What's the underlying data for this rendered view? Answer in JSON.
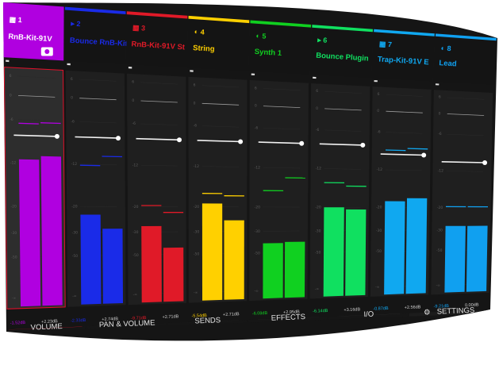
{
  "channels": [
    {
      "number": "1",
      "name": "RnB-Kit-91V",
      "type": "drum",
      "color": "#b000e0",
      "selected": true,
      "levels": [
        0.62,
        0.635
      ],
      "peaks": [
        0.77,
        0.775
      ],
      "fader": 0.72,
      "db_left": "-1.52dB",
      "db_right": "+2.23dB"
    },
    {
      "number": "2",
      "name": "Bounce RnB-Kit",
      "type": "audio",
      "color": "#1a2be8",
      "selected": false,
      "levels": [
        0.39,
        0.33
      ],
      "peaks": [
        0.6,
        0.64
      ],
      "fader": 0.72,
      "db_left": "-2.33dB",
      "db_right": "+2.74dB"
    },
    {
      "number": "3",
      "name": "RnB-Kit-91V St",
      "type": "drum",
      "color": "#e01a28",
      "selected": false,
      "levels": [
        0.34,
        0.245
      ],
      "peaks": [
        0.43,
        0.4
      ],
      "fader": 0.72,
      "db_left": "-9.71dB",
      "db_right": "+2.71dB"
    },
    {
      "number": "4",
      "name": "String",
      "type": "plugin",
      "color": "#ffd000",
      "selected": false,
      "levels": [
        0.44,
        0.365
      ],
      "peaks": [
        0.485,
        0.475
      ],
      "fader": 0.72,
      "db_left": "-5.54dB",
      "db_right": "+2.71dB"
    },
    {
      "number": "5",
      "name": "Synth 1",
      "type": "plugin",
      "color": "#10d020",
      "selected": false,
      "levels": [
        0.26,
        0.265
      ],
      "peaks": [
        0.5,
        0.56
      ],
      "fader": 0.72,
      "db_left": "-6.08dB",
      "db_right": "+2.95dB"
    },
    {
      "number": "6",
      "name": "Bounce Plugin",
      "type": "audio",
      "color": "#10e060",
      "selected": false,
      "levels": [
        0.425,
        0.415
      ],
      "peaks": [
        0.54,
        0.525
      ],
      "fader": 0.72,
      "db_left": "-6.14dB",
      "db_right": "+3.16dB"
    },
    {
      "number": "7",
      "name": "Trap-Kit-91V E",
      "type": "drum",
      "color": "#10a8f0",
      "selected": false,
      "levels": [
        0.455,
        0.47
      ],
      "peaks": [
        0.7,
        0.71
      ],
      "fader": 0.68,
      "db_left": "-0.87dB",
      "db_right": "+2.56dB"
    },
    {
      "number": "8",
      "name": "Lead",
      "type": "plugin",
      "color": "#10a0f0",
      "selected": false,
      "levels": [
        0.335,
        0.335
      ],
      "peaks": [
        0.43,
        0.43
      ],
      "fader": 0.65,
      "db_left": "-9.21dB",
      "db_right": "0.00dB"
    }
  ],
  "scale_labels": [
    "6",
    "0",
    "-6",
    "-12",
    "-20",
    "-30",
    "-50",
    "-∞"
  ],
  "tabs": [
    {
      "label": "VOLUME",
      "active": true
    },
    {
      "label": "PAN & VOLUME",
      "active": false
    },
    {
      "label": "SENDS",
      "active": false
    },
    {
      "label": "EFFECTS",
      "active": false
    },
    {
      "label": "I/O",
      "active": false
    },
    {
      "label": "SETTINGS",
      "active": false,
      "icon": "gear-icon"
    }
  ],
  "colors": {
    "background": "#151515",
    "strip": "#1f1f1f",
    "accent": "#e0102a",
    "text": "#e6e6e6"
  }
}
